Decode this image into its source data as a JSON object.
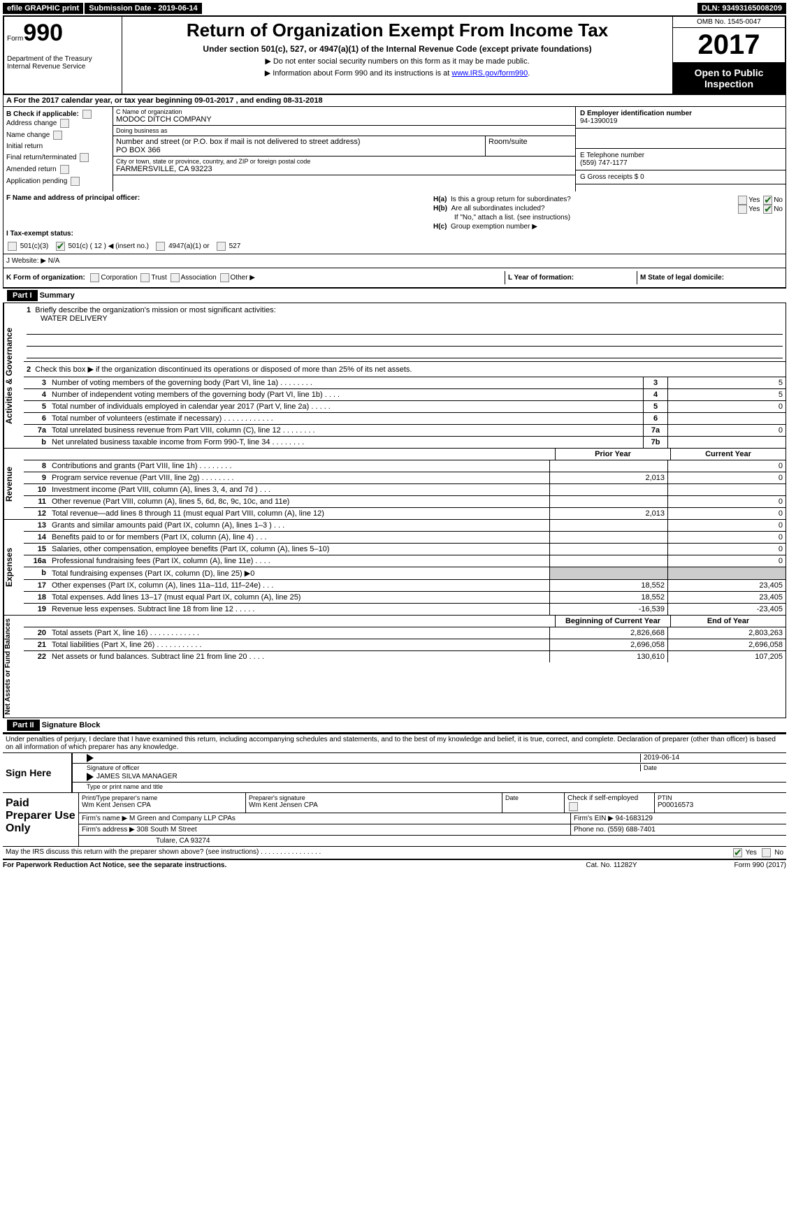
{
  "topbar": {
    "efile": "efile GRAPHIC print",
    "subdate_label": "Submission Date - 2019-06-14",
    "dln": "DLN: 93493165008209"
  },
  "header": {
    "form_label": "Form",
    "form_num": "990",
    "dept": "Department of the Treasury\nInternal Revenue Service",
    "title": "Return of Organization Exempt From Income Tax",
    "sub": "Under section 501(c), 527, or 4947(a)(1) of the Internal Revenue Code (except private foundations)",
    "note1": "▶ Do not enter social security numbers on this form as it may be made public.",
    "note2_pre": "▶ Information about Form 990 and its instructions is at ",
    "note2_link": "www.IRS.gov/form990",
    "omb": "OMB No. 1545-0047",
    "year": "2017",
    "open": "Open to Public Inspection"
  },
  "row_a": "A   For the 2017 calendar year, or tax year beginning 09-01-2017      , and ending 08-31-2018",
  "col_b": {
    "hdr": "B Check if applicable:",
    "items": [
      "Address change",
      "Name change",
      "Initial return",
      "Final return/terminated",
      "Amended return",
      "Application pending"
    ]
  },
  "col_c": {
    "name_lbl": "C Name of organization",
    "name": "MODOC DITCH COMPANY",
    "dba_lbl": "Doing business as",
    "dba": "",
    "addr_lbl": "Number and street (or P.O. box if mail is not delivered to street address)",
    "room_lbl": "Room/suite",
    "addr": "PO BOX 366",
    "city_lbl": "City or town, state or province, country, and ZIP or foreign postal code",
    "city": "FARMERSVILLE, CA  93223",
    "f_lbl": "F Name and address of principal officer:",
    "f_val": ""
  },
  "col_d": {
    "ein_lbl": "D Employer identification number",
    "ein": "94-1390019",
    "tel_lbl": "E Telephone number",
    "tel": "(559) 747-1177",
    "gross_lbl": "G Gross receipts $ 0"
  },
  "section_h": {
    "ha": "Is this a group return for subordinates?",
    "hb": "Are all subordinates included?",
    "hb_note": "If \"No,\" attach a list. (see instructions)",
    "hc": "Group exemption number ▶"
  },
  "row_i": {
    "label": "I   Tax-exempt status:",
    "opts": [
      "501(c)(3)",
      "501(c) ( 12 ) ◀ (insert no.)",
      "4947(a)(1) or",
      "527"
    ]
  },
  "row_j": "J   Website: ▶    N/A",
  "row_k": "K Form of organization:",
  "row_k_opts": [
    "Corporation",
    "Trust",
    "Association",
    "Other ▶"
  ],
  "row_l": "L Year of formation:",
  "row_m": "M State of legal domicile:",
  "part1": {
    "hdr": "Part I",
    "title": "Summary",
    "q1": "Briefly describe the organization's mission or most significant activities:",
    "q1_val": "WATER DELIVERY",
    "q2": "Check this box ▶        if the organization discontinued its operations or disposed of more than 25% of its net assets.",
    "sidelabels": [
      "Activities & Governance",
      "Revenue",
      "Expenses",
      "Net Assets or Fund Balances"
    ],
    "gov_rows": [
      {
        "n": "3",
        "t": "Number of voting members of the governing body (Part VI, line 1a)   .    .    .    .    .    .    .    .",
        "bn": "3",
        "v": "5"
      },
      {
        "n": "4",
        "t": "Number of independent voting members of the governing body (Part VI, line 1b)    .    .    .    .",
        "bn": "4",
        "v": "5"
      },
      {
        "n": "5",
        "t": "Total number of individuals employed in calendar year 2017 (Part V, line 2a)    .    .    .    .    .",
        "bn": "5",
        "v": "0"
      },
      {
        "n": "6",
        "t": "Total number of volunteers (estimate if necessary)    .    .    .    .    .    .    .    .    .    .    .    .",
        "bn": "6",
        "v": ""
      },
      {
        "n": "7a",
        "t": "Total unrelated business revenue from Part VIII, column (C), line 12    .    .    .    .    .    .    .    .",
        "bn": "7a",
        "v": "0"
      },
      {
        "n": "b",
        "t": "Net unrelated business taxable income from Form 990-T, line 34    .    .    .    .    .    .    .    .",
        "bn": "7b",
        "v": ""
      }
    ],
    "col_hdrs": {
      "prior": "Prior Year",
      "curr": "Current Year"
    },
    "rev_rows": [
      {
        "n": "8",
        "t": "Contributions and grants (Part VIII, line 1h)    .    .    .    .    .    .    .    .",
        "p": "",
        "c": "0"
      },
      {
        "n": "9",
        "t": "Program service revenue (Part VIII, line 2g)    .    .    .    .    .    .    .    .",
        "p": "2,013",
        "c": "0"
      },
      {
        "n": "10",
        "t": "Investment income (Part VIII, column (A), lines 3, 4, and 7d )    .    .    .",
        "p": "",
        "c": ""
      },
      {
        "n": "11",
        "t": "Other revenue (Part VIII, column (A), lines 5, 6d, 8c, 9c, 10c, and 11e)",
        "p": "",
        "c": "0"
      },
      {
        "n": "12",
        "t": "Total revenue—add lines 8 through 11 (must equal Part VIII, column (A), line 12)",
        "p": "2,013",
        "c": "0"
      }
    ],
    "exp_rows": [
      {
        "n": "13",
        "t": "Grants and similar amounts paid (Part IX, column (A), lines 1–3 )    .    .    .",
        "p": "",
        "c": "0"
      },
      {
        "n": "14",
        "t": "Benefits paid to or for members (Part IX, column (A), line 4)    .    .    .",
        "p": "",
        "c": "0"
      },
      {
        "n": "15",
        "t": "Salaries, other compensation, employee benefits (Part IX, column (A), lines 5–10)",
        "p": "",
        "c": "0"
      },
      {
        "n": "16a",
        "t": "Professional fundraising fees (Part IX, column (A), line 11e)    .    .    .    .",
        "p": "",
        "c": "0"
      },
      {
        "n": "b",
        "t": "Total fundraising expenses (Part IX, column (D), line 25) ▶0",
        "p": "grey",
        "c": "grey"
      },
      {
        "n": "17",
        "t": "Other expenses (Part IX, column (A), lines 11a–11d, 11f–24e)    .    .    .",
        "p": "18,552",
        "c": "23,405"
      },
      {
        "n": "18",
        "t": "Total expenses. Add lines 13–17 (must equal Part IX, column (A), line 25)",
        "p": "18,552",
        "c": "23,405"
      },
      {
        "n": "19",
        "t": "Revenue less expenses. Subtract line 18 from line 12    .    .    .    .    .",
        "p": "-16,539",
        "c": "-23,405"
      }
    ],
    "net_hdrs": {
      "beg": "Beginning of Current Year",
      "end": "End of Year"
    },
    "net_rows": [
      {
        "n": "20",
        "t": "Total assets (Part X, line 16)    .    .    .    .    .    .    .    .    .    .    .    .",
        "p": "2,826,668",
        "c": "2,803,263"
      },
      {
        "n": "21",
        "t": "Total liabilities (Part X, line 26)    .    .    .    .    .    .    .    .    .    .    .",
        "p": "2,696,058",
        "c": "2,696,058"
      },
      {
        "n": "22",
        "t": "Net assets or fund balances. Subtract line 21 from line 20    .    .    .    .",
        "p": "130,610",
        "c": "107,205"
      }
    ]
  },
  "part2": {
    "hdr": "Part II",
    "title": "Signature Block",
    "decl": "Under penalties of perjury, I declare that I have examined this return, including accompanying schedules and statements, and to the best of my knowledge and belief, it is true, correct, and complete. Declaration of preparer (other than officer) is based on all information of which preparer has any knowledge.",
    "sign_here": "Sign Here",
    "sig_date": "2019-06-14",
    "sig_officer_lbl": "Signature of officer",
    "date_lbl": "Date",
    "name_title": "JAMES SILVA  MANAGER",
    "name_title_lbl": "Type or print name and title"
  },
  "prep": {
    "label": "Paid Preparer Use Only",
    "r1": {
      "c1_lbl": "Print/Type preparer's name",
      "c1": "Wm Kent Jensen CPA",
      "c2_lbl": "Preparer's signature",
      "c2": "Wm Kent Jensen CPA",
      "c3_lbl": "Date",
      "c3": "",
      "c4": "Check        if self-employed",
      "c5_lbl": "PTIN",
      "c5": "P00016573"
    },
    "r2": {
      "a": "Firm's name      ▶ M Green and Company LLP CPAs",
      "b": "Firm's EIN ▶ 94-1683129"
    },
    "r3": {
      "a": "Firm's address ▶ 308 South M Street",
      "b": "Phone no. (559) 688-7401"
    },
    "r4": {
      "a": "Tulare, CA  93274"
    }
  },
  "bottom": "May the IRS discuss this return with the preparer shown above? (see instructions)    .    .    .    .    .    .    .    .    .    .    .    .    .    .    .    .",
  "footer": {
    "f1": "For Paperwork Reduction Act Notice, see the separate instructions.",
    "f2": "Cat. No. 11282Y",
    "f3": "Form 990 (2017)"
  }
}
